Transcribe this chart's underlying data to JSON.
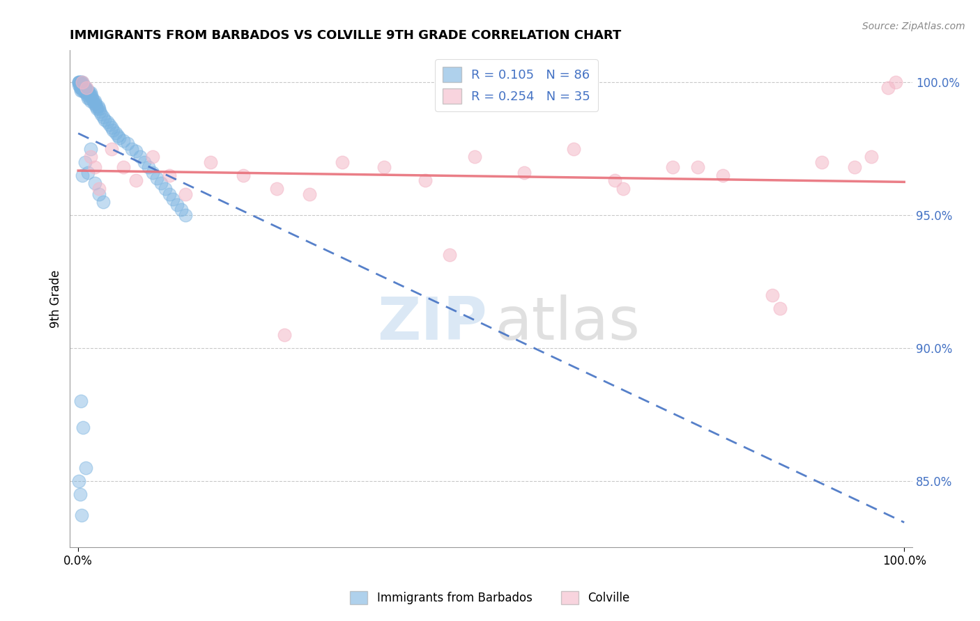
{
  "title": "IMMIGRANTS FROM BARBADOS VS COLVILLE 9TH GRADE CORRELATION CHART",
  "source_text": "Source: ZipAtlas.com",
  "ylabel": "9th Grade",
  "r_blue": 0.105,
  "n_blue": 86,
  "r_pink": 0.254,
  "n_pink": 35,
  "xlim": [
    -0.01,
    1.01
  ],
  "ylim": [
    0.825,
    1.012
  ],
  "yticks": [
    0.85,
    0.9,
    0.95,
    1.0
  ],
  "ytick_labels": [
    "85.0%",
    "90.0%",
    "95.0%",
    "100.0%"
  ],
  "xtick_labels": [
    "0.0%",
    "100.0%"
  ],
  "xticks": [
    0.0,
    1.0
  ],
  "blue_color": "#7ab3e0",
  "pink_color": "#f4b8c8",
  "blue_line_color": "#4472c4",
  "pink_line_color": "#e8707a",
  "watermark_zip": "ZIP",
  "watermark_atlas": "atlas",
  "legend_label_blue": "Immigrants from Barbados",
  "legend_label_pink": "Colville",
  "blue_scatter_x": [
    0.001,
    0.001,
    0.001,
    0.001,
    0.002,
    0.002,
    0.002,
    0.003,
    0.003,
    0.003,
    0.003,
    0.004,
    0.004,
    0.004,
    0.005,
    0.005,
    0.005,
    0.006,
    0.006,
    0.007,
    0.007,
    0.008,
    0.008,
    0.009,
    0.009,
    0.01,
    0.01,
    0.011,
    0.011,
    0.012,
    0.012,
    0.013,
    0.013,
    0.014,
    0.015,
    0.015,
    0.016,
    0.017,
    0.018,
    0.019,
    0.02,
    0.021,
    0.022,
    0.023,
    0.024,
    0.025,
    0.026,
    0.028,
    0.03,
    0.032,
    0.035,
    0.038,
    0.04,
    0.042,
    0.045,
    0.048,
    0.05,
    0.055,
    0.06,
    0.065,
    0.07,
    0.075,
    0.08,
    0.085,
    0.09,
    0.095,
    0.1,
    0.105,
    0.11,
    0.115,
    0.12,
    0.125,
    0.13,
    0.005,
    0.008,
    0.012,
    0.015,
    0.02,
    0.025,
    0.03,
    0.003,
    0.006,
    0.009,
    0.001,
    0.002,
    0.004
  ],
  "blue_scatter_y": [
    1.0,
    1.0,
    1.0,
    0.999,
    1.0,
    0.999,
    0.998,
    1.0,
    0.999,
    0.998,
    0.997,
    1.0,
    0.999,
    0.998,
    1.0,
    0.999,
    0.997,
    0.999,
    0.998,
    0.999,
    0.997,
    0.998,
    0.996,
    0.998,
    0.997,
    0.997,
    0.996,
    0.997,
    0.995,
    0.997,
    0.994,
    0.996,
    0.994,
    0.995,
    0.996,
    0.993,
    0.995,
    0.994,
    0.993,
    0.992,
    0.993,
    0.992,
    0.991,
    0.99,
    0.991,
    0.99,
    0.989,
    0.988,
    0.987,
    0.986,
    0.985,
    0.984,
    0.983,
    0.982,
    0.981,
    0.98,
    0.979,
    0.978,
    0.977,
    0.975,
    0.974,
    0.972,
    0.97,
    0.968,
    0.966,
    0.964,
    0.962,
    0.96,
    0.958,
    0.956,
    0.954,
    0.952,
    0.95,
    0.965,
    0.97,
    0.966,
    0.975,
    0.962,
    0.958,
    0.955,
    0.88,
    0.87,
    0.855,
    0.85,
    0.845,
    0.837
  ],
  "pink_scatter_x": [
    0.005,
    0.01,
    0.015,
    0.02,
    0.025,
    0.04,
    0.055,
    0.07,
    0.09,
    0.11,
    0.13,
    0.16,
    0.2,
    0.24,
    0.28,
    0.32,
    0.37,
    0.42,
    0.48,
    0.54,
    0.6,
    0.66,
    0.72,
    0.78,
    0.84,
    0.9,
    0.94,
    0.96,
    0.98,
    0.99,
    0.25,
    0.45,
    0.65,
    0.75,
    0.85
  ],
  "pink_scatter_y": [
    1.0,
    0.998,
    0.972,
    0.968,
    0.96,
    0.975,
    0.968,
    0.963,
    0.972,
    0.965,
    0.958,
    0.97,
    0.965,
    0.96,
    0.958,
    0.97,
    0.968,
    0.963,
    0.972,
    0.966,
    0.975,
    0.96,
    0.968,
    0.965,
    0.92,
    0.97,
    0.968,
    0.972,
    0.998,
    1.0,
    0.905,
    0.935,
    0.963,
    0.968,
    0.915
  ]
}
